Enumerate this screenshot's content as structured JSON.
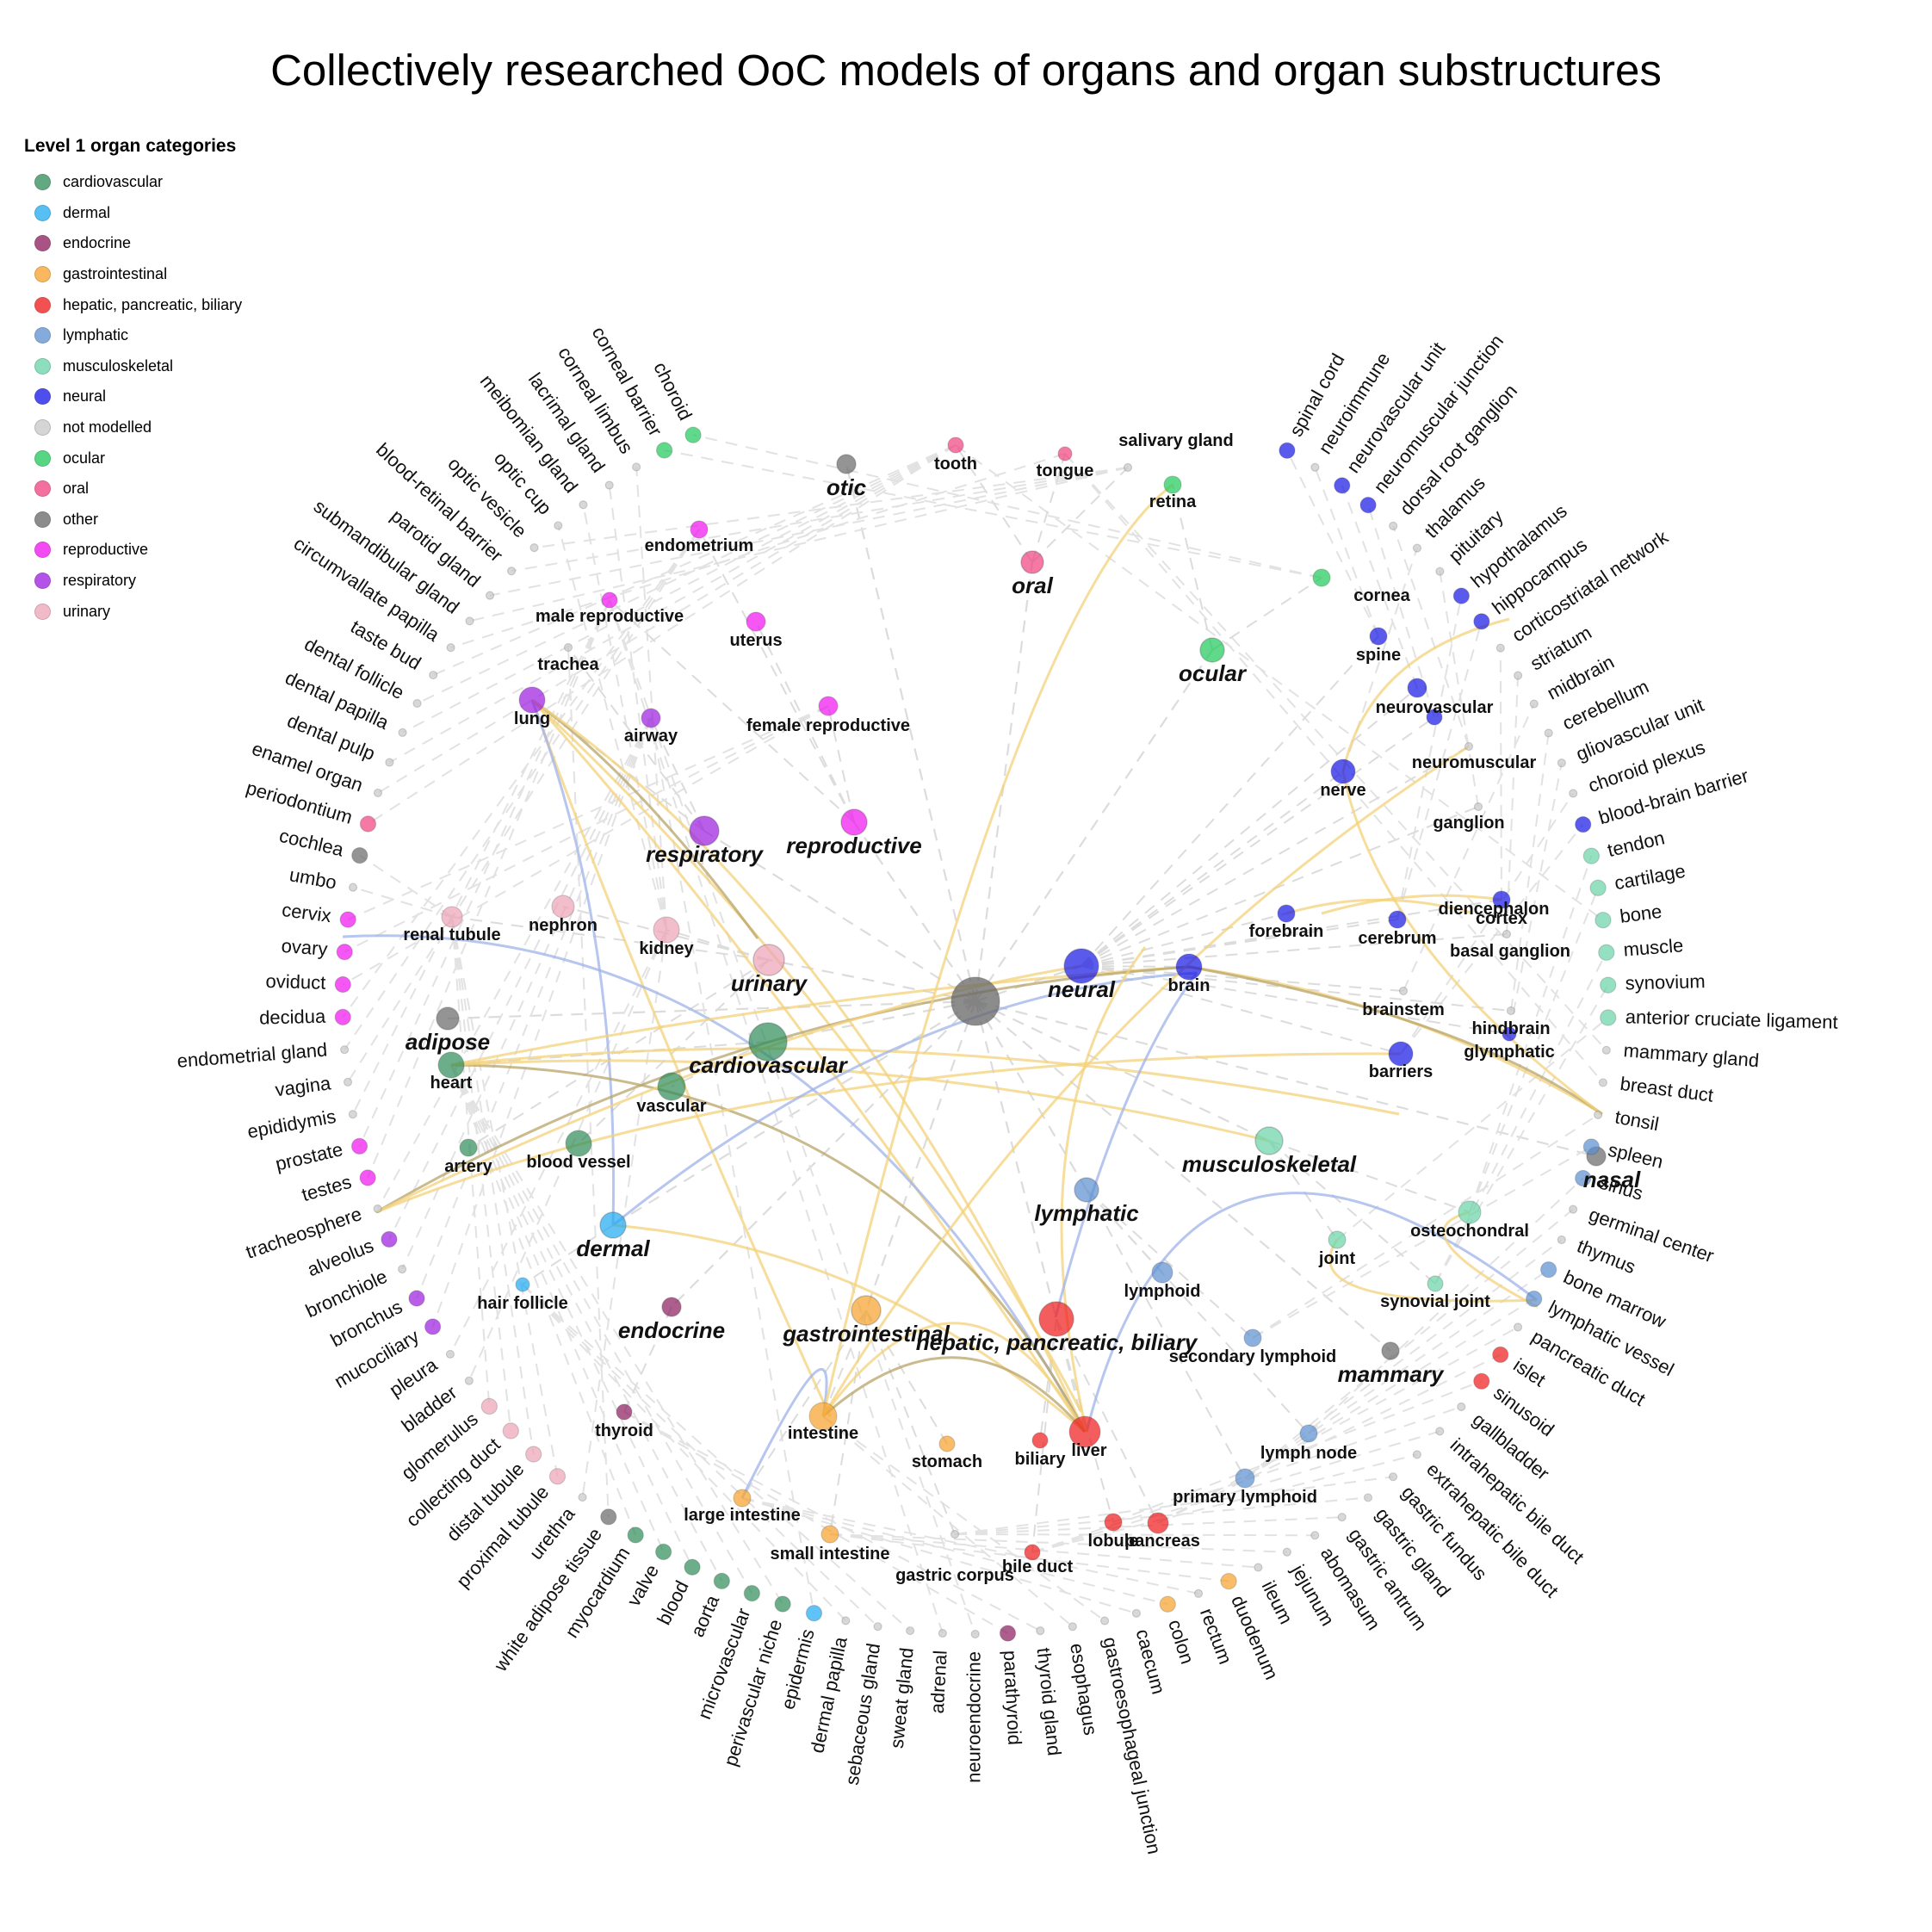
{
  "title": "Collectively researched OoC models of organs and organ substructures",
  "legend": {
    "title": "Level 1 organ categories",
    "items": [
      {
        "label": "cardiovascular",
        "color": "#2e8b57"
      },
      {
        "label": "dermal",
        "color": "#1eaaf1"
      },
      {
        "label": "endocrine",
        "color": "#8b1a5c"
      },
      {
        "label": "gastrointestinal",
        "color": "#f7a12a"
      },
      {
        "label": "hepatic, pancreatic, biliary",
        "color": "#f01818"
      },
      {
        "label": "lymphatic",
        "color": "#5b8fd0"
      },
      {
        "label": "musculoskeletal",
        "color": "#66d3a6"
      },
      {
        "label": "neural",
        "color": "#1414e6"
      },
      {
        "label": "not modelled",
        "color": "#c8c8c8"
      },
      {
        "label": "ocular",
        "color": "#1ec95a"
      },
      {
        "label": "oral",
        "color": "#f0407e"
      },
      {
        "label": "other",
        "color": "#666666"
      },
      {
        "label": "reproductive",
        "color": "#f010f0"
      },
      {
        "label": "respiratory",
        "color": "#9a1ae0"
      },
      {
        "label": "urinary",
        "color": "#eda3b6"
      }
    ]
  },
  "level1_nodes": [
    {
      "label": "cardiovascular",
      "cat": "cardiovascular",
      "size": 40
    },
    {
      "label": "urinary",
      "cat": "urinary",
      "size": 32
    },
    {
      "label": "respiratory",
      "cat": "respiratory",
      "size": 30
    },
    {
      "label": "reproductive",
      "cat": "reproductive",
      "size": 26
    },
    {
      "label": "otic",
      "cat": "other",
      "size": 18
    },
    {
      "label": "oral",
      "cat": "oral",
      "size": 22
    },
    {
      "label": "ocular",
      "cat": "ocular",
      "size": 24
    },
    {
      "label": "neural",
      "cat": "neural",
      "size": 36
    },
    {
      "label": "adipose",
      "cat": "other",
      "size": 22
    },
    {
      "label": "dermal",
      "cat": "dermal",
      "size": 26
    },
    {
      "label": "endocrine",
      "cat": "endocrine",
      "size": 18
    },
    {
      "label": "gastrointestinal",
      "cat": "gastrointestinal",
      "size": 30
    },
    {
      "label": "hepatic, pancreatic, biliary",
      "cat": "hepatic, pancreatic, biliary",
      "size": 36
    },
    {
      "label": "lymphatic",
      "cat": "lymphatic",
      "size": 24
    },
    {
      "label": "musculoskeletal",
      "cat": "musculoskeletal",
      "size": 28
    },
    {
      "label": "mammary",
      "cat": "other",
      "size": 16
    },
    {
      "label": "nasal",
      "cat": "other",
      "size": 18
    }
  ],
  "level2_nodes": [
    {
      "label": "heart",
      "cat": "cardiovascular",
      "size": 30
    },
    {
      "label": "vascular",
      "cat": "cardiovascular",
      "size": 32
    },
    {
      "label": "artery",
      "cat": "cardiovascular",
      "size": 20
    },
    {
      "label": "blood vessel",
      "cat": "cardiovascular",
      "size": 30
    },
    {
      "label": "renal tubule",
      "cat": "urinary",
      "size": 24
    },
    {
      "label": "nephron",
      "cat": "urinary",
      "size": 26
    },
    {
      "label": "kidney",
      "cat": "urinary",
      "size": 30
    },
    {
      "label": "lung",
      "cat": "respiratory",
      "size": 30
    },
    {
      "label": "trachea",
      "cat": "not modelled",
      "size": 8
    },
    {
      "label": "airway",
      "cat": "respiratory",
      "size": 22
    },
    {
      "label": "male reproductive",
      "cat": "reproductive",
      "size": 18
    },
    {
      "label": "endometrium",
      "cat": "reproductive",
      "size": 20
    },
    {
      "label": "uterus",
      "cat": "reproductive",
      "size": 22
    },
    {
      "label": "female reproductive",
      "cat": "reproductive",
      "size": 22
    },
    {
      "label": "tooth",
      "cat": "oral",
      "size": 18
    },
    {
      "label": "tongue",
      "cat": "oral",
      "size": 16
    },
    {
      "label": "salivary gland",
      "cat": "not modelled",
      "size": 8
    },
    {
      "label": "retina",
      "cat": "ocular",
      "size": 20
    },
    {
      "label": "cornea",
      "cat": "ocular",
      "size": 20
    },
    {
      "label": "spine",
      "cat": "neural",
      "size": 20
    },
    {
      "label": "neurovascular",
      "cat": "neural",
      "size": 22
    },
    {
      "label": "neuromuscular",
      "cat": "neural",
      "size": 18
    },
    {
      "label": "ganglion",
      "cat": "not modelled",
      "size": 8
    },
    {
      "label": "nerve",
      "cat": "neural",
      "size": 28
    },
    {
      "label": "diencephalon",
      "cat": "not modelled",
      "size": 8
    },
    {
      "label": "forebrain",
      "cat": "neural",
      "size": 20
    },
    {
      "label": "cerebrum",
      "cat": "neural",
      "size": 20
    },
    {
      "label": "cortex",
      "cat": "neural",
      "size": 20
    },
    {
      "label": "basal ganglion",
      "cat": "not modelled",
      "size": 8
    },
    {
      "label": "brain",
      "cat": "neural",
      "size": 30
    },
    {
      "label": "brainstem",
      "cat": "not modelled",
      "size": 8
    },
    {
      "label": "hindbrain",
      "cat": "not modelled",
      "size": 8
    },
    {
      "label": "glymphatic",
      "cat": "neural",
      "size": 16
    },
    {
      "label": "barriers",
      "cat": "neural",
      "size": 28
    },
    {
      "label": "hair follicle",
      "cat": "dermal",
      "size": 16
    },
    {
      "label": "thyroid",
      "cat": "endocrine",
      "size": 18
    },
    {
      "label": "intestine",
      "cat": "gastrointestinal",
      "size": 32
    },
    {
      "label": "large intestine",
      "cat": "gastrointestinal",
      "size": 20
    },
    {
      "label": "small intestine",
      "cat": "gastrointestinal",
      "size": 20
    },
    {
      "label": "stomach",
      "cat": "gastrointestinal",
      "size": 18
    },
    {
      "label": "gastric corpus",
      "cat": "not modelled",
      "size": 8
    },
    {
      "label": "biliary",
      "cat": "hepatic, pancreatic, biliary",
      "size": 18
    },
    {
      "label": "liver",
      "cat": "hepatic, pancreatic, biliary",
      "size": 36
    },
    {
      "label": "bile duct",
      "cat": "hepatic, pancreatic, biliary",
      "size": 18
    },
    {
      "label": "lobule",
      "cat": "hepatic, pancreatic, biliary",
      "size": 20
    },
    {
      "label": "pancreas",
      "cat": "hepatic, pancreatic, biliary",
      "size": 24
    },
    {
      "label": "lymphoid",
      "cat": "lymphatic",
      "size": 24
    },
    {
      "label": "secondary lymphoid",
      "cat": "lymphatic",
      "size": 20
    },
    {
      "label": "lymph node",
      "cat": "lymphatic",
      "size": 20
    },
    {
      "label": "primary lymphoid",
      "cat": "lymphatic",
      "size": 22
    },
    {
      "label": "osteochondral",
      "cat": "musculoskeletal",
      "size": 26
    },
    {
      "label": "joint",
      "cat": "musculoskeletal",
      "size": 20
    },
    {
      "label": "synovial joint",
      "cat": "musculoskeletal",
      "size": 18
    }
  ],
  "ring_nodes": [
    {
      "label": "spinal cord",
      "cat": "neural"
    },
    {
      "label": "neuroimmune",
      "cat": "not modelled"
    },
    {
      "label": "neurovascular unit",
      "cat": "neural"
    },
    {
      "label": "neuromuscular junction",
      "cat": "neural"
    },
    {
      "label": "dorsal root ganglion",
      "cat": "not modelled"
    },
    {
      "label": "thalamus",
      "cat": "not modelled"
    },
    {
      "label": "pituitary",
      "cat": "not modelled"
    },
    {
      "label": "hypothalamus",
      "cat": "neural"
    },
    {
      "label": "hippocampus",
      "cat": "neural"
    },
    {
      "label": "corticostriatal network",
      "cat": "not modelled"
    },
    {
      "label": "striatum",
      "cat": "not modelled"
    },
    {
      "label": "midbrain",
      "cat": "not modelled"
    },
    {
      "label": "cerebellum",
      "cat": "not modelled"
    },
    {
      "label": "gliovascular unit",
      "cat": "not modelled"
    },
    {
      "label": "choroid plexus",
      "cat": "not modelled"
    },
    {
      "label": "blood-brain barrier",
      "cat": "neural"
    },
    {
      "label": "tendon",
      "cat": "musculoskeletal"
    },
    {
      "label": "cartilage",
      "cat": "musculoskeletal"
    },
    {
      "label": "bone",
      "cat": "musculoskeletal"
    },
    {
      "label": "muscle",
      "cat": "musculoskeletal"
    },
    {
      "label": "synovium",
      "cat": "musculoskeletal"
    },
    {
      "label": "anterior cruciate ligament",
      "cat": "musculoskeletal"
    },
    {
      "label": "mammary gland",
      "cat": "not modelled"
    },
    {
      "label": "breast duct",
      "cat": "not modelled"
    },
    {
      "label": "tonsil",
      "cat": "not modelled"
    },
    {
      "label": "spleen",
      "cat": "lymphatic"
    },
    {
      "label": "sinus",
      "cat": "lymphatic"
    },
    {
      "label": "germinal center",
      "cat": "not modelled"
    },
    {
      "label": "thymus",
      "cat": "not modelled"
    },
    {
      "label": "bone marrow",
      "cat": "lymphatic"
    },
    {
      "label": "lymphatic vessel",
      "cat": "lymphatic"
    },
    {
      "label": "pancreatic duct",
      "cat": "not modelled"
    },
    {
      "label": "islet",
      "cat": "hepatic, pancreatic, biliary"
    },
    {
      "label": "sinusoid",
      "cat": "hepatic, pancreatic, biliary"
    },
    {
      "label": "gallbladder",
      "cat": "not modelled"
    },
    {
      "label": "intrahepatic bile duct",
      "cat": "not modelled"
    },
    {
      "label": "extrahepatic bile duct",
      "cat": "not modelled"
    },
    {
      "label": "gastric fundus",
      "cat": "not modelled"
    },
    {
      "label": "gastric gland",
      "cat": "not modelled"
    },
    {
      "label": "gastric antrum",
      "cat": "not modelled"
    },
    {
      "label": "abomasum",
      "cat": "not modelled"
    },
    {
      "label": "jejunum",
      "cat": "not modelled"
    },
    {
      "label": "ileum",
      "cat": "not modelled"
    },
    {
      "label": "duodenum",
      "cat": "gastrointestinal"
    },
    {
      "label": "rectum",
      "cat": "not modelled"
    },
    {
      "label": "colon",
      "cat": "gastrointestinal"
    },
    {
      "label": "caecum",
      "cat": "not modelled"
    },
    {
      "label": "gastroesophageal junction",
      "cat": "not modelled"
    },
    {
      "label": "esophagus",
      "cat": "not modelled"
    },
    {
      "label": "thyroid gland",
      "cat": "not modelled"
    },
    {
      "label": "parathyroid",
      "cat": "endocrine"
    },
    {
      "label": "neuroendocrine",
      "cat": "not modelled"
    },
    {
      "label": "adrenal",
      "cat": "not modelled"
    },
    {
      "label": "sweat gland",
      "cat": "not modelled"
    },
    {
      "label": "sebaceous gland",
      "cat": "not modelled"
    },
    {
      "label": "dermal papilla",
      "cat": "not modelled"
    },
    {
      "label": "epidermis",
      "cat": "dermal"
    },
    {
      "label": "perivascular niche",
      "cat": "cardiovascular"
    },
    {
      "label": "microvascular",
      "cat": "cardiovascular"
    },
    {
      "label": "aorta",
      "cat": "cardiovascular"
    },
    {
      "label": "blood",
      "cat": "cardiovascular"
    },
    {
      "label": "valve",
      "cat": "cardiovascular"
    },
    {
      "label": "myocardium",
      "cat": "cardiovascular"
    },
    {
      "label": "white adipose tissue",
      "cat": "other"
    },
    {
      "label": "urethra",
      "cat": "not modelled"
    },
    {
      "label": "proximal tubule",
      "cat": "urinary"
    },
    {
      "label": "distal tubule",
      "cat": "urinary"
    },
    {
      "label": "collecting duct",
      "cat": "urinary"
    },
    {
      "label": "glomerulus",
      "cat": "urinary"
    },
    {
      "label": "bladder",
      "cat": "not modelled"
    },
    {
      "label": "pleura",
      "cat": "not modelled"
    },
    {
      "label": "mucociliary",
      "cat": "respiratory"
    },
    {
      "label": "bronchus",
      "cat": "respiratory"
    },
    {
      "label": "bronchiole",
      "cat": "not modelled"
    },
    {
      "label": "alveolus",
      "cat": "respiratory"
    },
    {
      "label": "tracheosphere",
      "cat": "not modelled"
    },
    {
      "label": "testes",
      "cat": "reproductive"
    },
    {
      "label": "prostate",
      "cat": "reproductive"
    },
    {
      "label": "epididymis",
      "cat": "not modelled"
    },
    {
      "label": "vagina",
      "cat": "not modelled"
    },
    {
      "label": "endometrial gland",
      "cat": "not modelled"
    },
    {
      "label": "decidua",
      "cat": "reproductive"
    },
    {
      "label": "oviduct",
      "cat": "reproductive"
    },
    {
      "label": "ovary",
      "cat": "reproductive"
    },
    {
      "label": "cervix",
      "cat": "reproductive"
    },
    {
      "label": "umbo",
      "cat": "not modelled"
    },
    {
      "label": "cochlea",
      "cat": "other"
    },
    {
      "label": "periodontium",
      "cat": "oral"
    },
    {
      "label": "enamel organ",
      "cat": "not modelled"
    },
    {
      "label": "dental pulp",
      "cat": "not modelled"
    },
    {
      "label": "dental papilla",
      "cat": "not modelled"
    },
    {
      "label": "dental follicle",
      "cat": "not modelled"
    },
    {
      "label": "taste bud",
      "cat": "not modelled"
    },
    {
      "label": "circumvallate papilla",
      "cat": "not modelled"
    },
    {
      "label": "submandibular gland",
      "cat": "not modelled"
    },
    {
      "label": "parotid gland",
      "cat": "not modelled"
    },
    {
      "label": "blood-retinal barrier",
      "cat": "not modelled"
    },
    {
      "label": "optic vesicle",
      "cat": "not modelled"
    },
    {
      "label": "optic cup",
      "cat": "not modelled"
    },
    {
      "label": "meibomian gland",
      "cat": "not modelled"
    },
    {
      "label": "lacrimal gland",
      "cat": "not modelled"
    },
    {
      "label": "corneal limbus",
      "cat": "not modelled"
    },
    {
      "label": "corneal barrier",
      "cat": "ocular"
    },
    {
      "label": "choroid",
      "cat": "ocular"
    }
  ]
}
